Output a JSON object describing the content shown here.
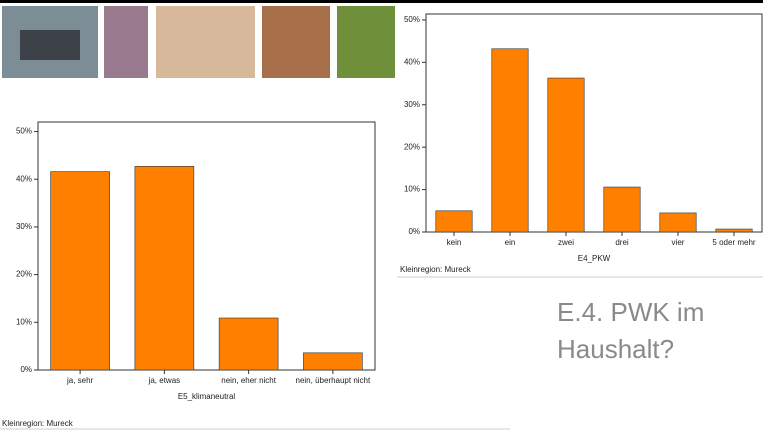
{
  "slide_title": "E.4. PWK im Haushalt?",
  "chart_data": [
    {
      "type": "bar",
      "x_label": "E5_klimaneutral",
      "note": "Kleinregion: Mureck",
      "categories": [
        "ja, sehr",
        "ja, etwas",
        "nein, eher nicht",
        "nein, überhaupt nicht"
      ],
      "values": [
        41.6,
        42.7,
        10.9,
        3.6
      ],
      "color": "#ff8000",
      "ylim": [
        0,
        52
      ],
      "yticks": [
        {
          "value": 0,
          "label": "0%"
        },
        {
          "value": 10,
          "label": "10%"
        },
        {
          "value": 20,
          "label": "20%"
        },
        {
          "value": 30,
          "label": "30%"
        },
        {
          "value": 40,
          "label": "40%"
        },
        {
          "value": 50,
          "label": "50%"
        }
      ]
    },
    {
      "type": "bar",
      "x_label": "E4_PKW",
      "note": "Kleinregion: Mureck",
      "categories": [
        "kein",
        "ein",
        "zwei",
        "drei",
        "vier",
        "5 oder mehr"
      ],
      "values": [
        5.0,
        43.2,
        36.3,
        10.6,
        4.5,
        0.7
      ],
      "color": "#ff8000",
      "ylim": [
        0,
        51.4
      ],
      "yticks": [
        {
          "value": 0,
          "label": "0%"
        },
        {
          "value": 10,
          "label": "10%"
        },
        {
          "value": 20,
          "label": "20%"
        },
        {
          "value": 30,
          "label": "30%"
        },
        {
          "value": 40,
          "label": "40%"
        },
        {
          "value": 50,
          "label": "50%"
        }
      ]
    }
  ]
}
